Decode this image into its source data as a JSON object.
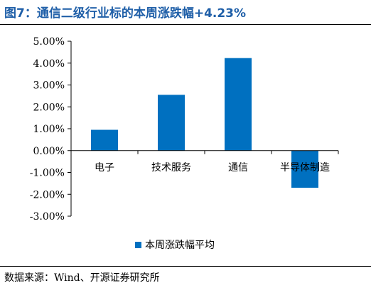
{
  "header": {
    "title": "图7：通信二级行业标的本周涨跌幅+4.23%"
  },
  "footer": {
    "source": "数据来源：Wind、开源证券研究所"
  },
  "chart_data": {
    "type": "bar",
    "title": "",
    "xlabel": "",
    "ylabel": "",
    "categories": [
      "电子",
      "技术服务",
      "通信",
      "半导体制造"
    ],
    "series": [
      {
        "name": "本周涨跌幅平均",
        "values": [
          0.95,
          2.55,
          4.23,
          -1.7
        ],
        "color": "#0070C0"
      }
    ],
    "ylim": [
      -3.0,
      5.0
    ],
    "ytick_values": [
      5,
      4,
      3,
      2,
      1,
      0,
      -1,
      -2,
      -3
    ],
    "ytick_labels": [
      "5.00%",
      "4.00%",
      "3.00%",
      "2.00%",
      "1.00%",
      "0.00%",
      "-1.00%",
      "-2.00%",
      "-3.00%"
    ],
    "grid": false,
    "legend": "bottom"
  }
}
